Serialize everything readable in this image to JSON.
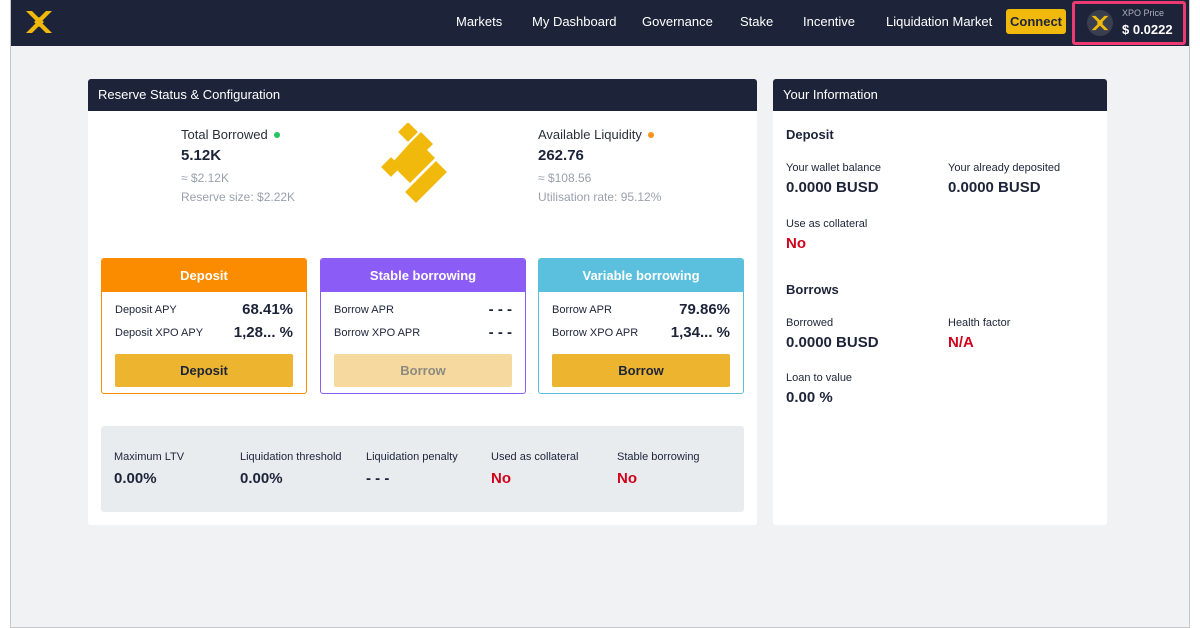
{
  "nav": {
    "items": [
      "Markets",
      "My Dashboard",
      "Governance",
      "Stake",
      "Incentive",
      "Liquidation Market"
    ],
    "connect_label": "Connect",
    "price_label": "XPO Price",
    "price_value": "$ 0.0222"
  },
  "reserve": {
    "title": "Reserve Status & Configuration",
    "total_borrowed": {
      "label": "Total Borrowed",
      "value": "5.12K",
      "usd": "≈ $2.12K",
      "extra": "Reserve size: $2.22K",
      "dot_color": "#22c55e"
    },
    "available_liquidity": {
      "label": "Available Liquidity",
      "value": "262.76",
      "usd": "≈ $108.56",
      "extra": "Utilisation rate: 95.12%",
      "dot_color": "#f7931a"
    },
    "cards": {
      "deposit": {
        "title": "Deposit",
        "row1_label": "Deposit APY",
        "row1_value": "68.41%",
        "row2_label": "Deposit XPO APY",
        "row2_value": "1,28... %",
        "button": "Deposit",
        "color": "#fb8c00"
      },
      "stable": {
        "title": "Stable borrowing",
        "row1_label": "Borrow APR",
        "row1_value": "- - -",
        "row2_label": "Borrow XPO APR",
        "row2_value": "- - -",
        "button": "Borrow",
        "color": "#8b5cf6"
      },
      "variable": {
        "title": "Variable borrowing",
        "row1_label": "Borrow APR",
        "row1_value": "79.86%",
        "row2_label": "Borrow XPO APR",
        "row2_value": "1,34... %",
        "button": "Borrow",
        "color": "#5bc0de"
      }
    },
    "config": [
      {
        "label": "Maximum LTV",
        "value": "0.00%"
      },
      {
        "label": "Liquidation threshold",
        "value": "0.00%"
      },
      {
        "label": "Liquidation penalty",
        "value": "- - -"
      },
      {
        "label": "Used as collateral",
        "value": "No"
      },
      {
        "label": "Stable borrowing",
        "value": "No"
      }
    ]
  },
  "info": {
    "title": "Your Information",
    "deposit_heading": "Deposit",
    "wallet_balance_label": "Your wallet balance",
    "wallet_balance_value": "0.0000 BUSD",
    "deposited_label": "Your already deposited",
    "deposited_value": "0.0000 BUSD",
    "collateral_label": "Use as collateral",
    "collateral_value": "No",
    "borrows_heading": "Borrows",
    "borrowed_label": "Borrowed",
    "borrowed_value": "0.0000 BUSD",
    "health_label": "Health factor",
    "health_value": "N/A",
    "ltv_label": "Loan to value",
    "ltv_value": "0.00 %"
  },
  "colors": {
    "accent": "#f0b90b",
    "nav_bg": "#1d2439",
    "highlight": "#ee3a73",
    "negative": "#d0021b"
  }
}
